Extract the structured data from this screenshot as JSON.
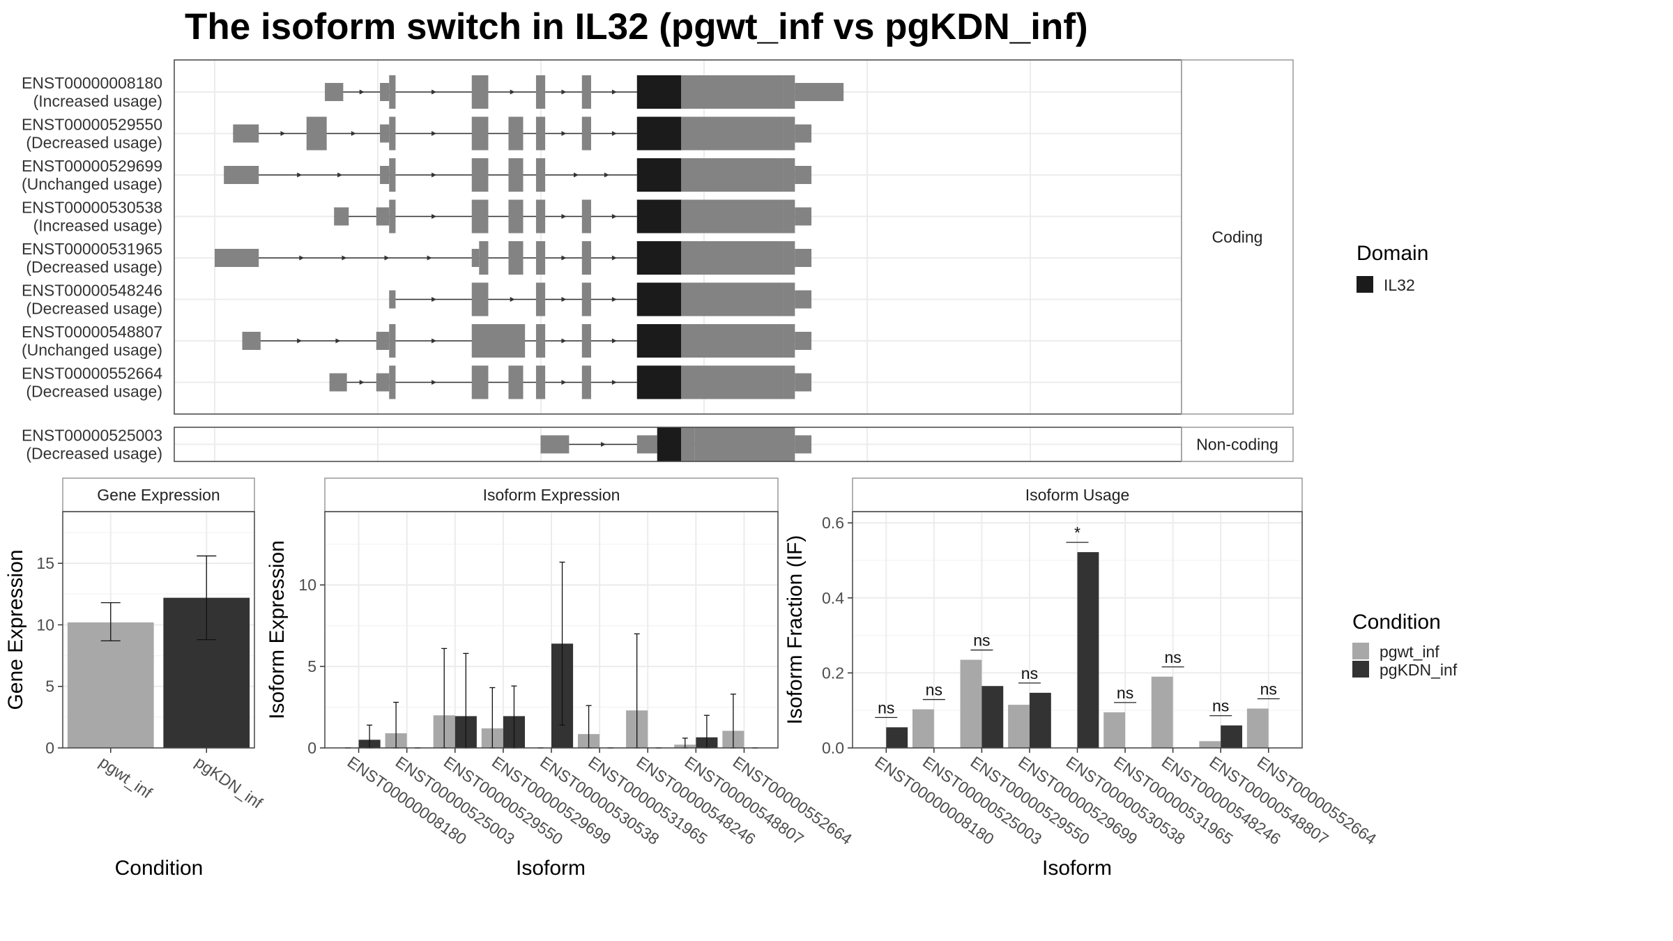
{
  "title": "The isoform switch in IL32 (pgwt_inf vs pgKDN_inf)",
  "colors": {
    "exon": "#838383",
    "domain": "#1b1b1b",
    "cond1": "#a8a8a8",
    "cond2": "#333333",
    "grid": "#ececec",
    "panel_border": "#444444",
    "strip_border": "#999999"
  },
  "chart_data": [
    {
      "type": "gene-structure",
      "xlim": [
        0,
        100
      ],
      "panels": [
        {
          "strip": "Coding",
          "transcripts": [
            {
              "id": "ENST00000008180",
              "status": "(Increased usage)",
              "exons": [
                [
                  12,
                  14
                ],
                [
                  18,
                  19
                ],
                [
                  19,
                  19.7
                ],
                [
                  28,
                  29.8
                ],
                [
                  35,
                  36
                ],
                [
                  40,
                  41
                ],
                [
                  46,
                  62
                ],
                [
                  62,
                  63.2
                ],
                [
                  63.2,
                  68.5
                ]
              ],
              "domains": [
                [
                  46,
                  50.8
                ]
              ]
            },
            {
              "id": "ENST00000529550",
              "status": "(Decreased usage)",
              "exons": [
                [
                  2,
                  4.8
                ],
                [
                  10,
                  12.2
                ],
                [
                  18,
                  19
                ],
                [
                  19,
                  19.7
                ],
                [
                  28,
                  29.8
                ],
                [
                  32,
                  33.6
                ],
                [
                  35,
                  36
                ],
                [
                  40,
                  41
                ],
                [
                  46,
                  62
                ],
                [
                  62,
                  63.2
                ],
                [
                  63.2,
                  65
                ]
              ],
              "domains": [
                [
                  46,
                  50.8
                ]
              ]
            },
            {
              "id": "ENST00000529699",
              "status": "(Unchanged usage)",
              "exons": [
                [
                  1,
                  4.8
                ],
                [
                  18,
                  19
                ],
                [
                  19,
                  19.7
                ],
                [
                  28,
                  29.8
                ],
                [
                  32,
                  33.6
                ],
                [
                  35,
                  36
                ],
                [
                  46,
                  62
                ],
                [
                  62,
                  63.2
                ],
                [
                  63.2,
                  65
                ]
              ],
              "domains": [
                [
                  46,
                  50.8
                ]
              ]
            },
            {
              "id": "ENST00000530538",
              "status": "(Increased usage)",
              "exons": [
                [
                  13,
                  14.6
                ],
                [
                  17.6,
                  19
                ],
                [
                  19,
                  19.7
                ],
                [
                  28,
                  29.8
                ],
                [
                  32,
                  33.6
                ],
                [
                  35,
                  36
                ],
                [
                  40,
                  41
                ],
                [
                  46,
                  62
                ],
                [
                  62,
                  63.2
                ],
                [
                  63.2,
                  65
                ]
              ],
              "domains": [
                [
                  46,
                  50.8
                ]
              ]
            },
            {
              "id": "ENST00000531965",
              "status": "(Decreased usage)",
              "exons": [
                [
                  0,
                  4.8
                ],
                [
                  28,
                  28.8
                ],
                [
                  28.8,
                  29.8
                ],
                [
                  32,
                  33.6
                ],
                [
                  35,
                  36
                ],
                [
                  40,
                  41
                ],
                [
                  46,
                  62
                ],
                [
                  62,
                  63.2
                ],
                [
                  63.2,
                  65
                ]
              ],
              "domains": [
                [
                  46,
                  50.8
                ]
              ]
            },
            {
              "id": "ENST00000548246",
              "status": "(Decreased usage)",
              "exons": [
                [
                  19,
                  19.7
                ],
                [
                  28,
                  29.8
                ],
                [
                  35,
                  36
                ],
                [
                  40,
                  41
                ],
                [
                  46,
                  62
                ],
                [
                  62,
                  63.2
                ],
                [
                  63.2,
                  65
                ]
              ],
              "domains": [
                [
                  46,
                  50.8
                ]
              ]
            },
            {
              "id": "ENST00000548807",
              "status": "(Unchanged usage)",
              "exons": [
                [
                  3,
                  5
                ],
                [
                  17.6,
                  19
                ],
                [
                  19,
                  19.7
                ],
                [
                  28,
                  33.8
                ],
                [
                  35,
                  36
                ],
                [
                  40,
                  41
                ],
                [
                  46,
                  62
                ],
                [
                  62,
                  63.2
                ],
                [
                  63.2,
                  65
                ]
              ],
              "domains": [
                [
                  46,
                  50.8
                ]
              ]
            },
            {
              "id": "ENST00000552664",
              "status": "(Decreased usage)",
              "exons": [
                [
                  12.5,
                  14.4
                ],
                [
                  17.6,
                  19
                ],
                [
                  19,
                  19.7
                ],
                [
                  28,
                  29.8
                ],
                [
                  32,
                  33.6
                ],
                [
                  35,
                  36
                ],
                [
                  40,
                  41
                ],
                [
                  46,
                  62
                ],
                [
                  62,
                  63.2
                ],
                [
                  63.2,
                  65
                ]
              ],
              "domains": [
                [
                  46,
                  50.8
                ]
              ]
            }
          ]
        },
        {
          "strip": "Non-coding",
          "transcripts": [
            {
              "id": "ENST00000525003",
              "status": "(Decreased usage)",
              "exons": [
                [
                  35.5,
                  38.6
                ],
                [
                  46,
                  48.2
                ],
                [
                  48.2,
                  52.3
                ],
                [
                  52.3,
                  63.2
                ],
                [
                  63.2,
                  65
                ]
              ],
              "domains": [
                [
                  48.2,
                  50.8
                ]
              ]
            }
          ]
        }
      ],
      "legend": {
        "title": "Domain",
        "items": [
          "IL32"
        ]
      }
    },
    {
      "type": "bar",
      "strip": "Gene Expression",
      "xlabel": "Condition",
      "ylabel": "Gene Expression",
      "ylim": [
        0,
        19.2
      ],
      "yticks": [
        0,
        5,
        10,
        15
      ],
      "categories": [
        "pgwt_inf",
        "pgKDN_inf"
      ],
      "values": [
        10.2,
        12.2
      ],
      "errors": [
        [
          8.7,
          11.8
        ],
        [
          8.8,
          15.6
        ]
      ]
    },
    {
      "type": "bar",
      "strip": "Isoform Expression",
      "xlabel": "Isoform",
      "ylabel": "Isoform Expression",
      "ylim": [
        0,
        14.5
      ],
      "yticks": [
        0,
        5,
        10
      ],
      "categories": [
        "ENST00000008180",
        "ENST00000525003",
        "ENST00000529550",
        "ENST00000529699",
        "ENST00000530538",
        "ENST00000531965",
        "ENST00000548246",
        "ENST00000548807",
        "ENST00000552664"
      ],
      "series": [
        {
          "name": "pgwt_inf",
          "values": [
            0,
            0.9,
            2.0,
            1.2,
            0,
            0.85,
            2.3,
            0.2,
            1.05
          ],
          "errors": [
            [
              0,
              0
            ],
            [
              0,
              2.8
            ],
            [
              0,
              6.1
            ],
            [
              0,
              3.7
            ],
            [
              0,
              0
            ],
            [
              0,
              2.6
            ],
            [
              0,
              7.0
            ],
            [
              0,
              0.6
            ],
            [
              0,
              3.3
            ]
          ]
        },
        {
          "name": "pgKDN_inf",
          "values": [
            0.5,
            0,
            1.95,
            1.95,
            6.4,
            0,
            0,
            0.65,
            0
          ],
          "errors": [
            [
              0,
              1.4
            ],
            [
              0,
              0
            ],
            [
              0,
              5.8
            ],
            [
              0,
              3.8
            ],
            [
              1.4,
              11.4
            ],
            [
              0,
              0
            ],
            [
              0,
              0
            ],
            [
              0,
              2.0
            ],
            [
              0,
              0
            ]
          ]
        }
      ]
    },
    {
      "type": "bar",
      "strip": "Isoform Usage",
      "xlabel": "Isoform",
      "ylabel": "Isoform Fraction (IF)",
      "ylim": [
        0,
        0.63
      ],
      "yticks": [
        0.0,
        0.2,
        0.4,
        0.6
      ],
      "ytick_labels": [
        "0.0",
        "0.2",
        "0.4",
        "0.6"
      ],
      "categories": [
        "ENST00000008180",
        "ENST00000525003",
        "ENST00000529550",
        "ENST00000529699",
        "ENST00000530538",
        "ENST00000531965",
        "ENST00000548246",
        "ENST00000548807",
        "ENST00000552664"
      ],
      "series": [
        {
          "name": "pgwt_inf",
          "values": [
            0,
            0.103,
            0.235,
            0.115,
            0,
            0.095,
            0.19,
            0.018,
            0.105
          ]
        },
        {
          "name": "pgKDN_inf",
          "values": [
            0.055,
            0,
            0.165,
            0.147,
            0.522,
            0,
            0,
            0.06,
            0
          ]
        }
      ],
      "significance": [
        "ns",
        "ns",
        "ns",
        "ns",
        "*",
        "ns",
        "ns",
        "ns",
        "ns"
      ]
    }
  ],
  "condition_legend": {
    "title": "Condition",
    "items": [
      "pgwt_inf",
      "pgKDN_inf"
    ]
  }
}
